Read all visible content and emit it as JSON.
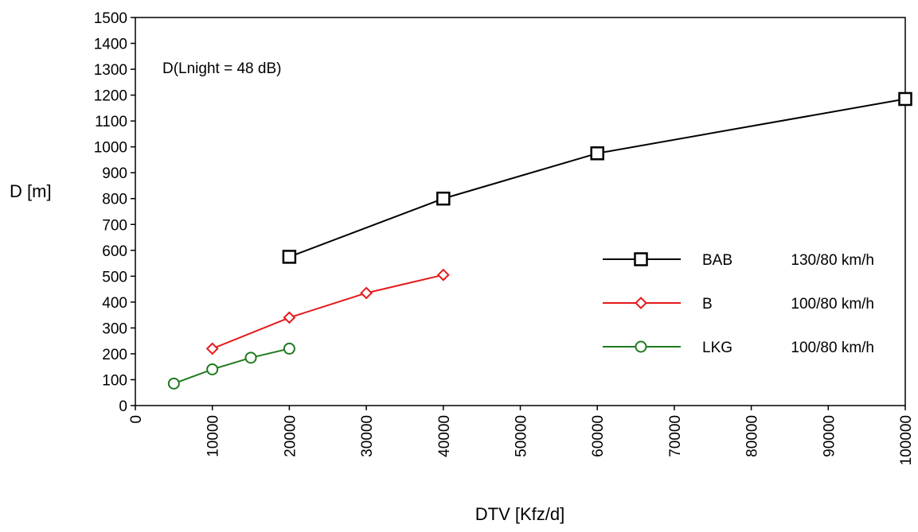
{
  "chart_data": {
    "type": "line",
    "annotation": "D(Lnight = 48 dB)",
    "xlabel": "DTV [Kfz/d]",
    "ylabel": "D [m]",
    "xlim": [
      0,
      100000
    ],
    "ylim": [
      0,
      1500
    ],
    "xticks": [
      0,
      10000,
      20000,
      30000,
      40000,
      50000,
      60000,
      70000,
      80000,
      90000,
      100000
    ],
    "yticks": [
      0,
      100,
      200,
      300,
      400,
      500,
      600,
      700,
      800,
      900,
      1000,
      1100,
      1200,
      1300,
      1400,
      1500
    ],
    "grid": false,
    "legend_position": "right",
    "series": [
      {
        "name": "BAB 130/80 km/h",
        "legend_parts": [
          "BAB",
          "130/80 km/h"
        ],
        "color": "#000000",
        "marker": "square",
        "x": [
          20000,
          40000,
          60000,
          100000
        ],
        "y": [
          575,
          800,
          975,
          1185
        ]
      },
      {
        "name": "B 100/80 km/h",
        "legend_parts": [
          "B",
          "100/80 km/h"
        ],
        "color": "#e41a1c",
        "marker": "diamond",
        "x": [
          10000,
          20000,
          30000,
          40000
        ],
        "y": [
          220,
          340,
          435,
          505
        ]
      },
      {
        "name": "LKG 100/80 km/h",
        "legend_parts": [
          "LKG",
          "100/80 km/h"
        ],
        "color": "#1f7a1f",
        "marker": "circle",
        "x": [
          5000,
          10000,
          15000,
          20000
        ],
        "y": [
          85,
          140,
          185,
          220
        ]
      }
    ]
  }
}
